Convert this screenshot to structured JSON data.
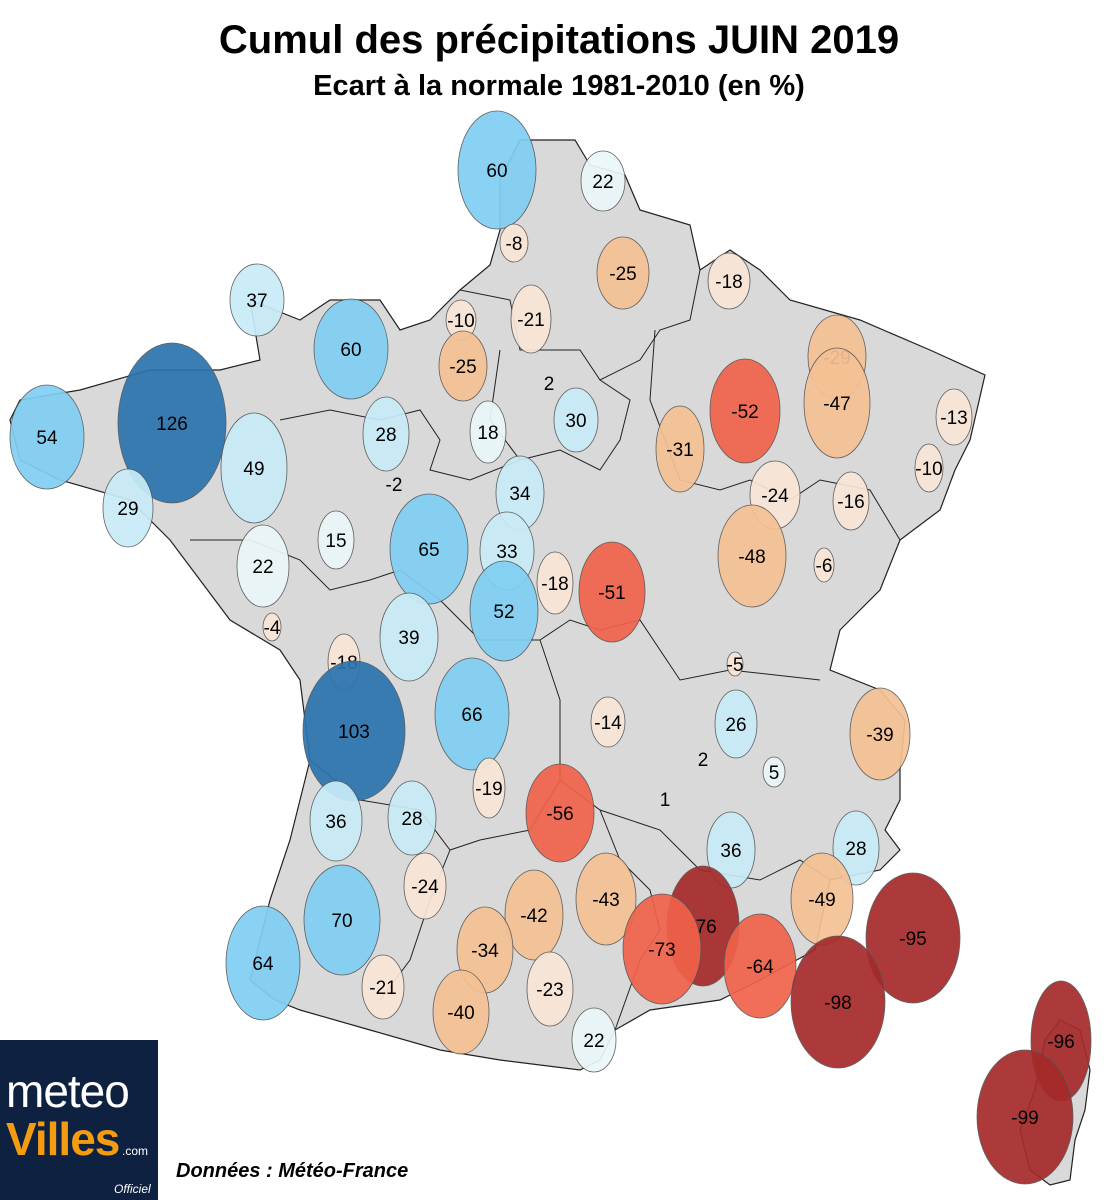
{
  "header": {
    "title": "Cumul des précipitations JUIN 2019",
    "subtitle": "Ecart à la normale 1981-2010 (en %)"
  },
  "map": {
    "colors": {
      "land": "#d9d9d9",
      "border": "#222222",
      "wet_strong": "#2b74ae",
      "wet_medium": "#7fcff2",
      "wet_light": "#c8ecf7",
      "near_normal_wet": "#eaf7f8",
      "near_normal_dry": "#f9e6d6",
      "dry_light": "#f5c194",
      "dry_medium": "#f0624a",
      "dry_strong": "#a52a2a"
    },
    "stations": [
      {
        "value": "60",
        "category": "wet_medium"
      },
      {
        "value": "22",
        "category": "near_normal_wet"
      },
      {
        "value": "-8",
        "category": "near_normal_dry"
      },
      {
        "value": "-25",
        "category": "dry_light"
      },
      {
        "value": "-18",
        "category": "near_normal_dry"
      },
      {
        "value": "37",
        "category": "wet_light"
      },
      {
        "value": "60",
        "category": "wet_medium"
      },
      {
        "value": "-10",
        "category": "near_normal_dry"
      },
      {
        "value": "-21",
        "category": "near_normal_dry"
      },
      {
        "value": "-25",
        "category": "dry_light"
      },
      {
        "value": "-29",
        "category": "dry_light"
      },
      {
        "value": "54",
        "category": "wet_medium"
      },
      {
        "value": "126",
        "category": "wet_strong"
      },
      {
        "value": "2",
        "category": "none"
      },
      {
        "value": "30",
        "category": "wet_light"
      },
      {
        "value": "-52",
        "category": "dry_medium"
      },
      {
        "value": "-47",
        "category": "dry_light"
      },
      {
        "value": "-13",
        "category": "near_normal_dry"
      },
      {
        "value": "28",
        "category": "wet_light"
      },
      {
        "value": "18",
        "category": "near_normal_wet"
      },
      {
        "value": "-31",
        "category": "dry_light"
      },
      {
        "value": "49",
        "category": "wet_light"
      },
      {
        "value": "-2",
        "category": "none"
      },
      {
        "value": "34",
        "category": "wet_light"
      },
      {
        "value": "-24",
        "category": "near_normal_dry"
      },
      {
        "value": "-16",
        "category": "near_normal_dry"
      },
      {
        "value": "-10",
        "category": "near_normal_dry"
      },
      {
        "value": "29",
        "category": "wet_light"
      },
      {
        "value": "15",
        "category": "near_normal_wet"
      },
      {
        "value": "65",
        "category": "wet_medium"
      },
      {
        "value": "33",
        "category": "wet_light"
      },
      {
        "value": "22",
        "category": "near_normal_wet"
      },
      {
        "value": "-18",
        "category": "near_normal_dry"
      },
      {
        "value": "-51",
        "category": "dry_medium"
      },
      {
        "value": "-48",
        "category": "dry_light"
      },
      {
        "value": "-6",
        "category": "near_normal_dry"
      },
      {
        "value": "-4",
        "category": "near_normal_dry"
      },
      {
        "value": "39",
        "category": "wet_light"
      },
      {
        "value": "52",
        "category": "wet_medium"
      },
      {
        "value": "-18",
        "category": "near_normal_dry"
      },
      {
        "value": "-5",
        "category": "near_normal_dry"
      },
      {
        "value": "103",
        "category": "wet_strong"
      },
      {
        "value": "66",
        "category": "wet_medium"
      },
      {
        "value": "-14",
        "category": "near_normal_dry"
      },
      {
        "value": "26",
        "category": "wet_light"
      },
      {
        "value": "-39",
        "category": "dry_light"
      },
      {
        "value": "2",
        "category": "none"
      },
      {
        "value": "5",
        "category": "near_normal_wet"
      },
      {
        "value": "-19",
        "category": "near_normal_dry"
      },
      {
        "value": "-56",
        "category": "dry_medium"
      },
      {
        "value": "1",
        "category": "none"
      },
      {
        "value": "36",
        "category": "wet_light"
      },
      {
        "value": "28",
        "category": "wet_light"
      },
      {
        "value": "36",
        "category": "wet_light"
      },
      {
        "value": "28",
        "category": "wet_light"
      },
      {
        "value": "-24",
        "category": "near_normal_dry"
      },
      {
        "value": "-43",
        "category": "dry_light"
      },
      {
        "value": "-76",
        "category": "dry_strong"
      },
      {
        "value": "-49",
        "category": "dry_light"
      },
      {
        "value": "70",
        "category": "wet_medium"
      },
      {
        "value": "-42",
        "category": "dry_light"
      },
      {
        "value": "-73",
        "category": "dry_medium"
      },
      {
        "value": "-95",
        "category": "dry_strong"
      },
      {
        "value": "64",
        "category": "wet_medium"
      },
      {
        "value": "-34",
        "category": "dry_light"
      },
      {
        "value": "-64",
        "category": "dry_medium"
      },
      {
        "value": "-21",
        "category": "near_normal_dry"
      },
      {
        "value": "-23",
        "category": "near_normal_dry"
      },
      {
        "value": "-98",
        "category": "dry_strong"
      },
      {
        "value": "-40",
        "category": "dry_light"
      },
      {
        "value": "22",
        "category": "near_normal_wet"
      },
      {
        "value": "-96",
        "category": "dry_strong"
      },
      {
        "value": "-99",
        "category": "dry_strong"
      }
    ]
  },
  "footer": {
    "source": "Données : Météo-France"
  },
  "logo": {
    "line1": "meteo",
    "line2": "Villes",
    "domain": ".com",
    "badge": "Officiel"
  }
}
